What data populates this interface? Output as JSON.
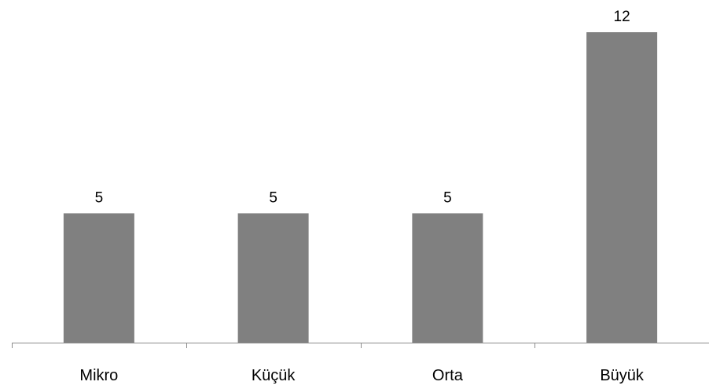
{
  "chart_data": {
    "type": "bar",
    "categories": [
      "Mikro",
      "Küçük",
      "Orta",
      "Büyük"
    ],
    "values": [
      5,
      5,
      5,
      12
    ],
    "data_labels": [
      "5",
      "5",
      "5",
      "12"
    ],
    "title": "",
    "xlabel": "",
    "ylabel": "",
    "ylim": [
      0,
      12
    ],
    "grid": false,
    "legend": "none",
    "colors": {
      "bar": "#808080",
      "axis": "#8c8c8c",
      "text": "#000000"
    }
  }
}
